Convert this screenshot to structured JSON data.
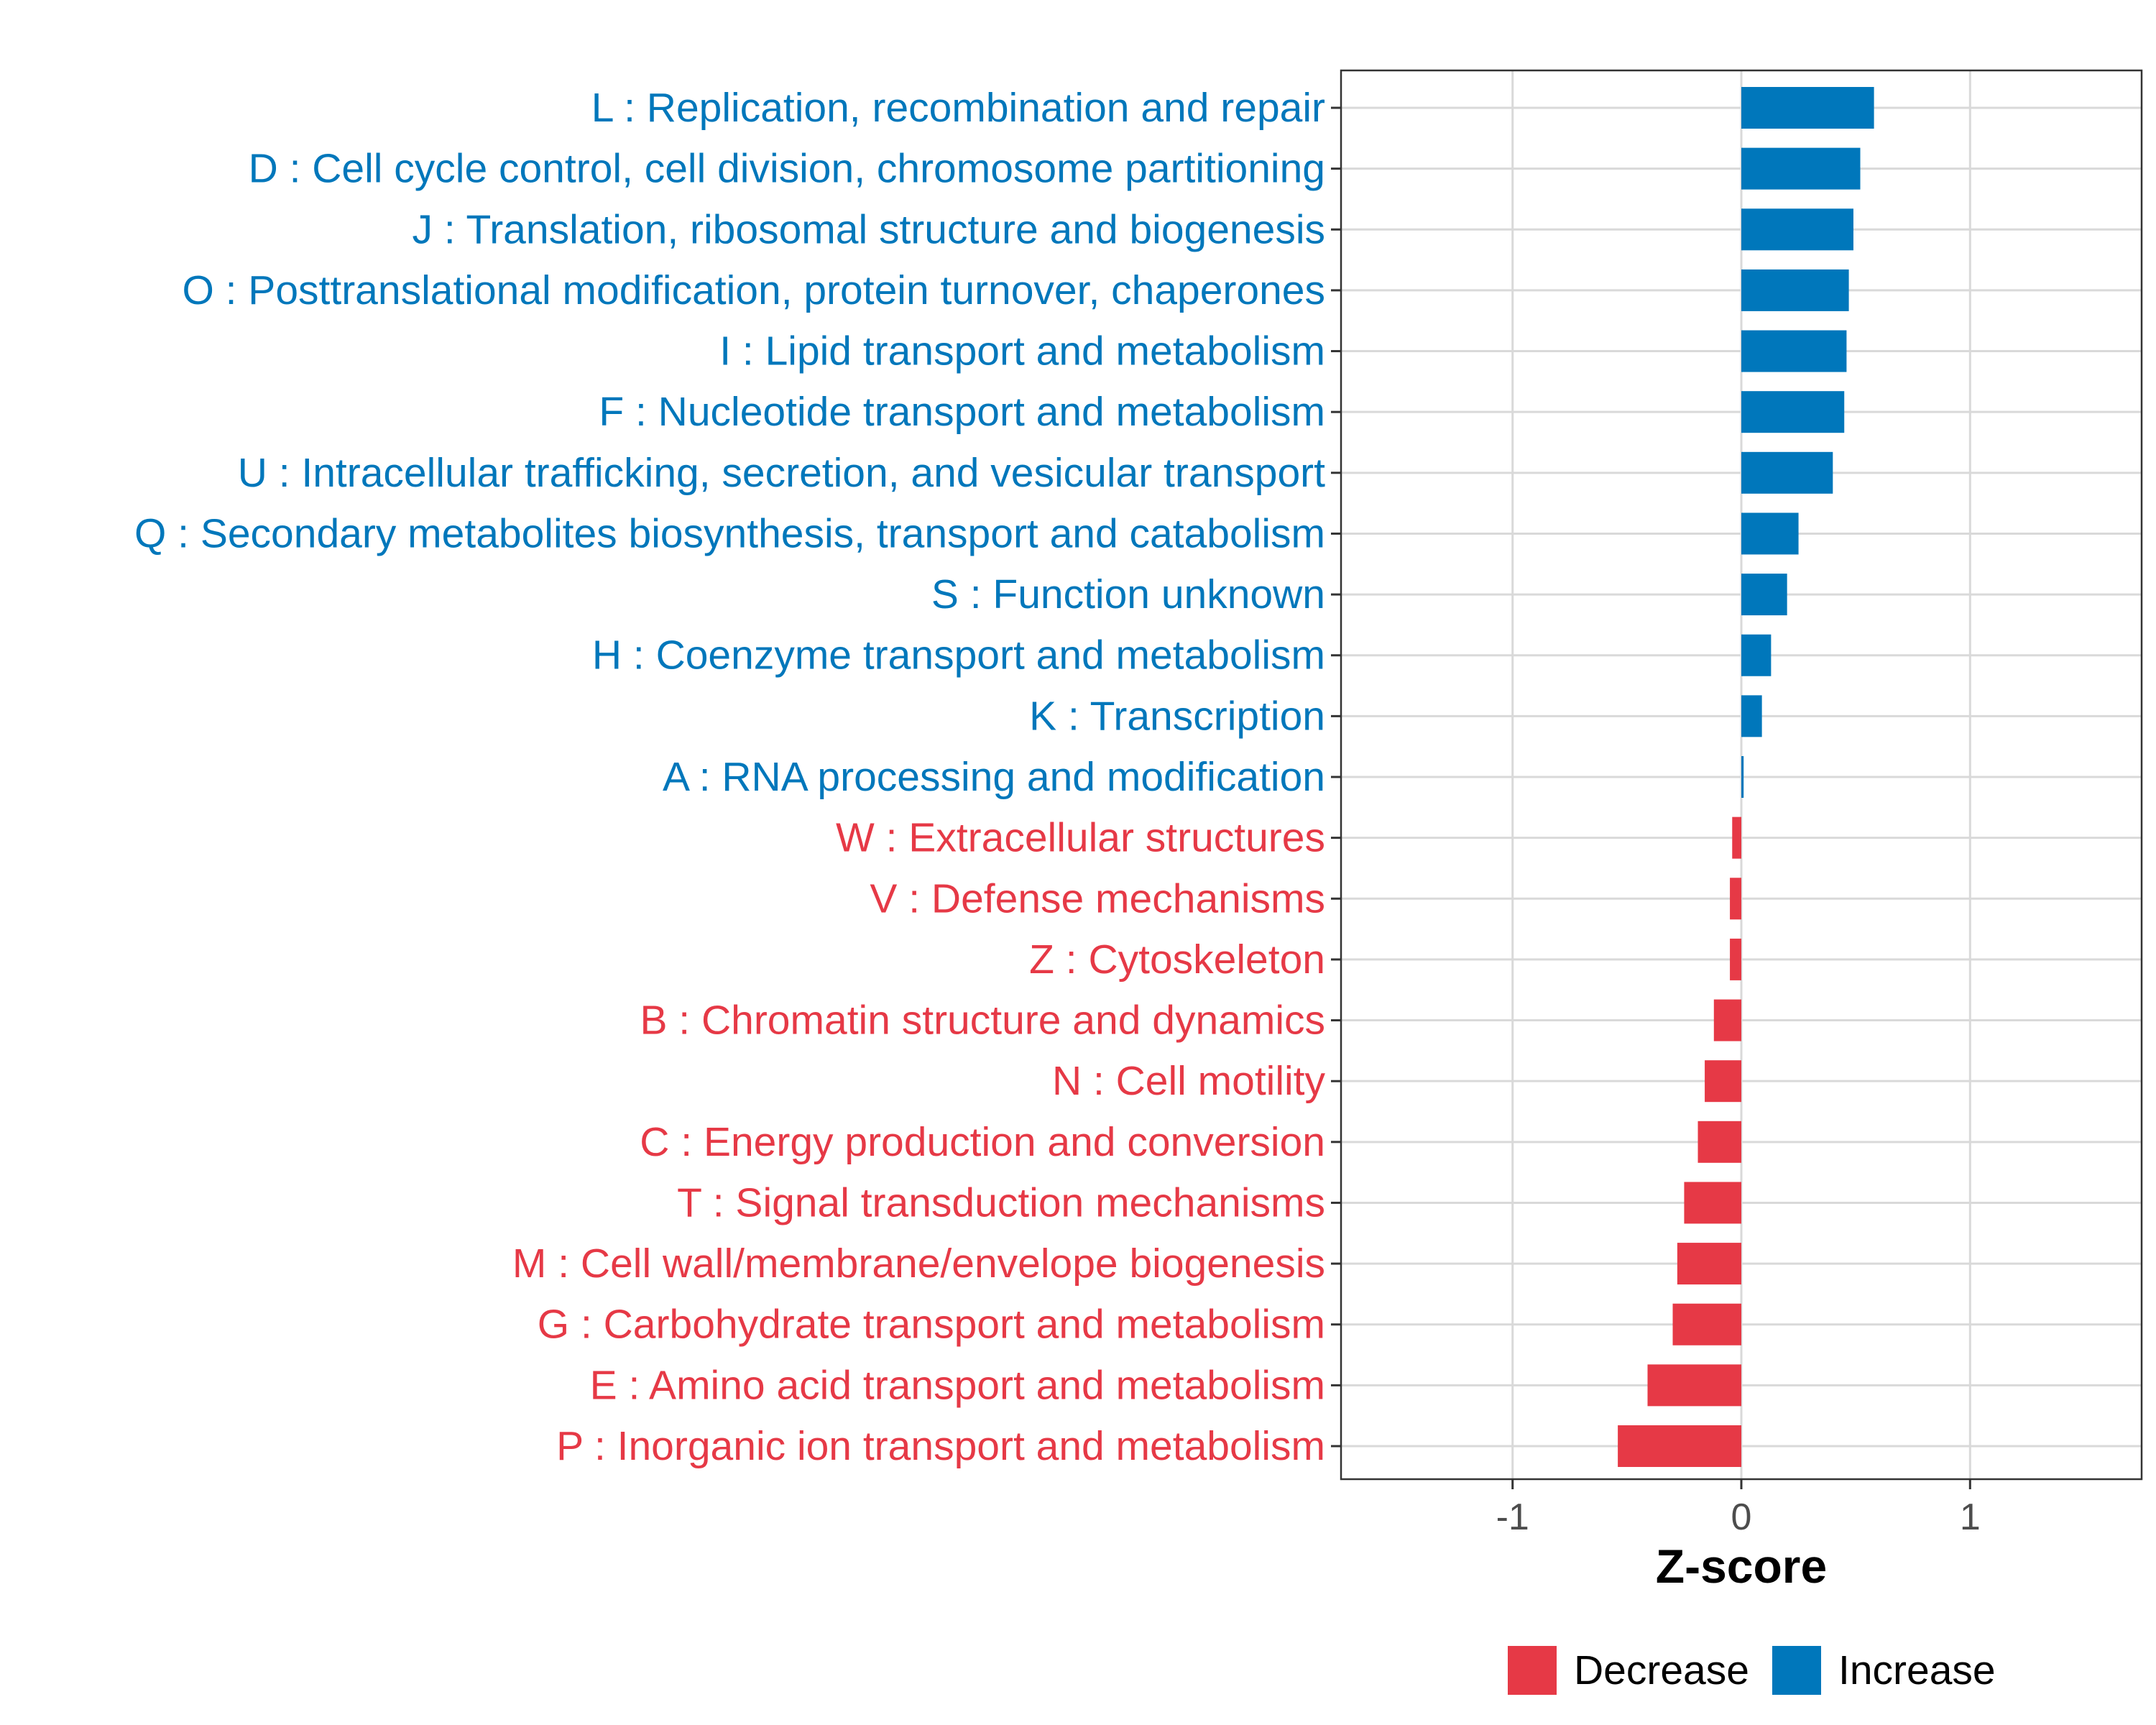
{
  "chart_data": {
    "type": "bar",
    "orientation": "horizontal",
    "xlabel": "Z-score",
    "xlim": [
      -1.75,
      1.75
    ],
    "x_ticks": [
      -1,
      0,
      1
    ],
    "x_tick_labels": [
      "-1",
      "0",
      "1"
    ],
    "grid": true,
    "legend_position": "bottom",
    "legend": [
      {
        "name": "Decrease",
        "color": "#E63946"
      },
      {
        "name": "Increase",
        "color": "#0077BB"
      }
    ],
    "categories": [
      "L : Replication, recombination and repair",
      "D : Cell cycle control, cell division, chromosome partitioning",
      "J : Translation, ribosomal structure and biogenesis",
      "O : Posttranslational modification, protein turnover, chaperones",
      "I : Lipid transport and metabolism",
      "F : Nucleotide transport and metabolism",
      "U : Intracellular trafficking, secretion, and vesicular transport",
      "Q : Secondary metabolites biosynthesis, transport and catabolism",
      "S : Function unknown",
      "H : Coenzyme transport and metabolism",
      "K : Transcription",
      "A : RNA processing and modification",
      "W : Extracellular structures",
      "V : Defense mechanisms",
      "Z : Cytoskeleton",
      "B : Chromatin structure and dynamics",
      "N : Cell motility",
      "C : Energy production and conversion",
      "T : Signal transduction mechanisms",
      "M : Cell wall/membrane/envelope biogenesis",
      "G : Carbohydrate transport and metabolism",
      "E : Amino acid transport and metabolism",
      "P : Inorganic ion transport and metabolism"
    ],
    "values": [
      0.58,
      0.52,
      0.49,
      0.47,
      0.46,
      0.45,
      0.4,
      0.25,
      0.2,
      0.13,
      0.09,
      0.01,
      -0.04,
      -0.05,
      -0.05,
      -0.12,
      -0.16,
      -0.19,
      -0.25,
      -0.28,
      -0.3,
      -0.41,
      -0.54
    ]
  }
}
